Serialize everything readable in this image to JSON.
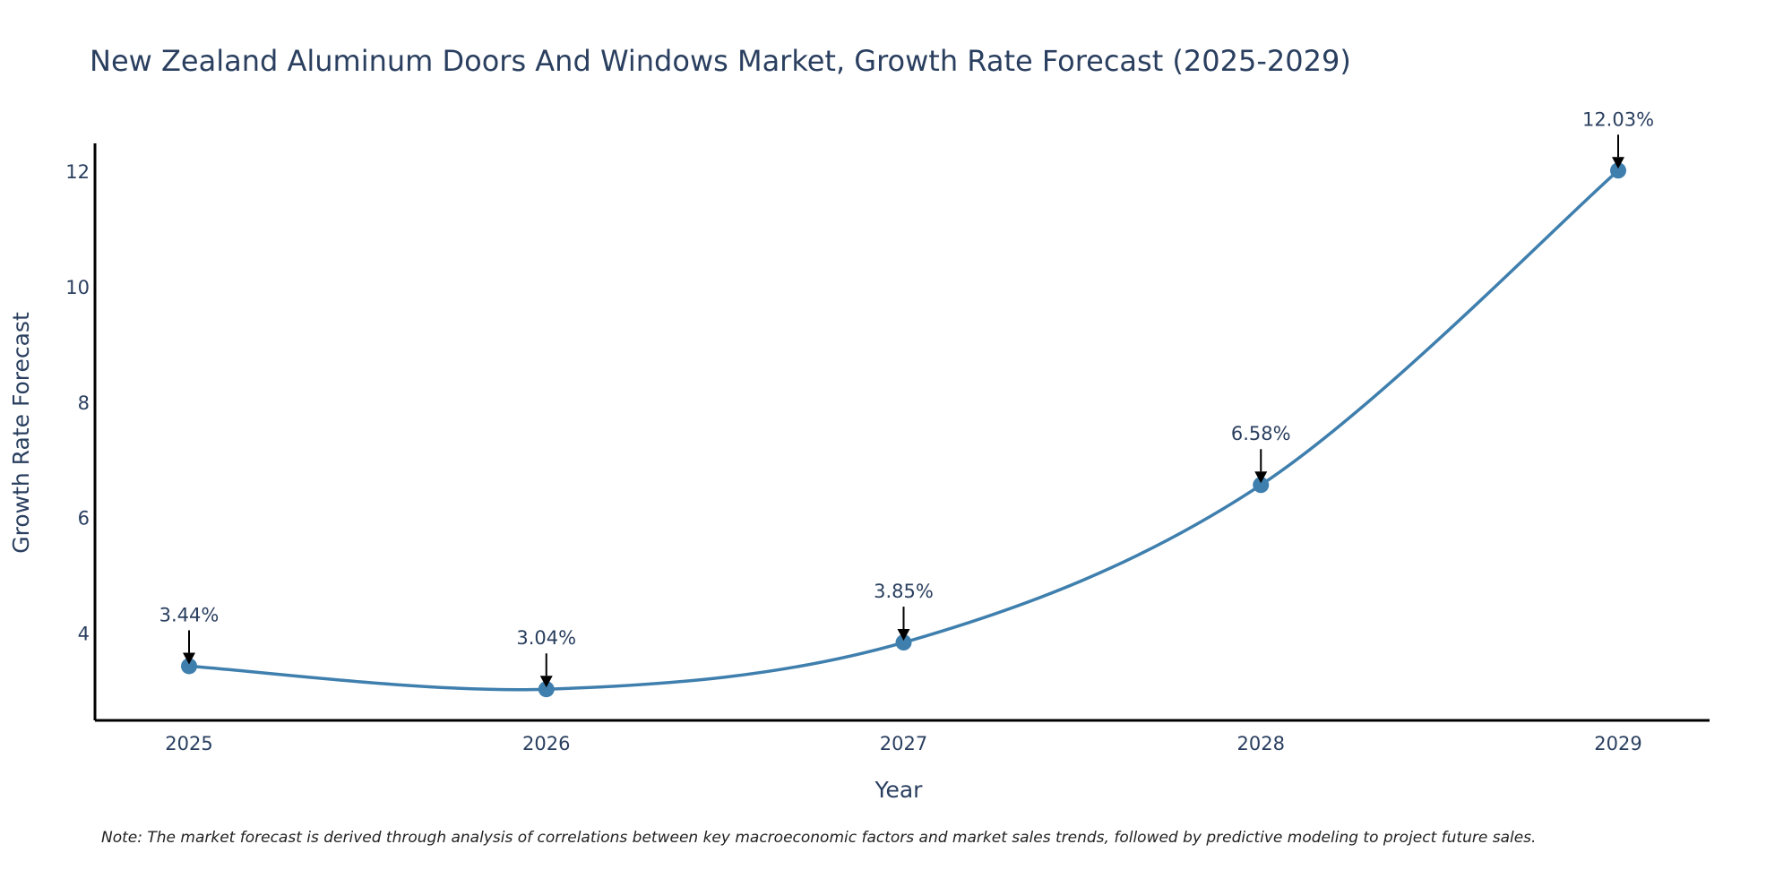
{
  "chart_data": {
    "type": "line",
    "title": "New Zealand Aluminum Doors And Windows Market, Growth Rate Forecast (2025-2029)",
    "xlabel": "Year",
    "ylabel": "Growth Rate Forecast",
    "categories": [
      "2025",
      "2026",
      "2027",
      "2028",
      "2029"
    ],
    "values": [
      3.44,
      3.04,
      3.85,
      6.58,
      12.03
    ],
    "data_labels": [
      "3.44%",
      "3.04%",
      "3.85%",
      "6.58%",
      "12.03%"
    ],
    "yticks": [
      4,
      6,
      8,
      10,
      12
    ],
    "ylim": [
      2.5,
      12.5
    ],
    "line_shape": "spline",
    "grid": false,
    "line_color": "#3f7fae",
    "marker_color": "#3f7fae",
    "arrow_color": "#000000",
    "axis_color": "#000000",
    "text_color": "#2a3f5f"
  },
  "note": "Note: The market forecast is derived through analysis of correlations between key macroeconomic factors and market sales trends, followed by predictive modeling to project future sales."
}
